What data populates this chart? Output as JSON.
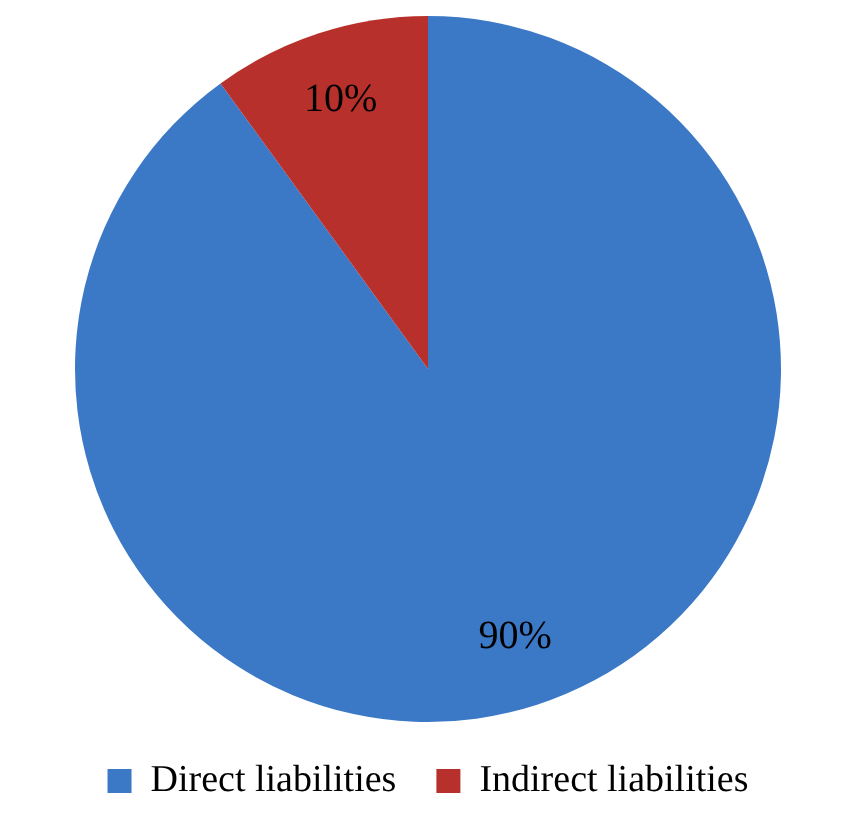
{
  "chart_data": {
    "type": "pie",
    "categories": [
      "Direct liabilities",
      "Indirect liabilities"
    ],
    "values": [
      90,
      10
    ],
    "colors": [
      "#3b78c6",
      "#b8302b"
    ],
    "value_labels": [
      "90%",
      "10%"
    ],
    "legend": "bottom"
  }
}
